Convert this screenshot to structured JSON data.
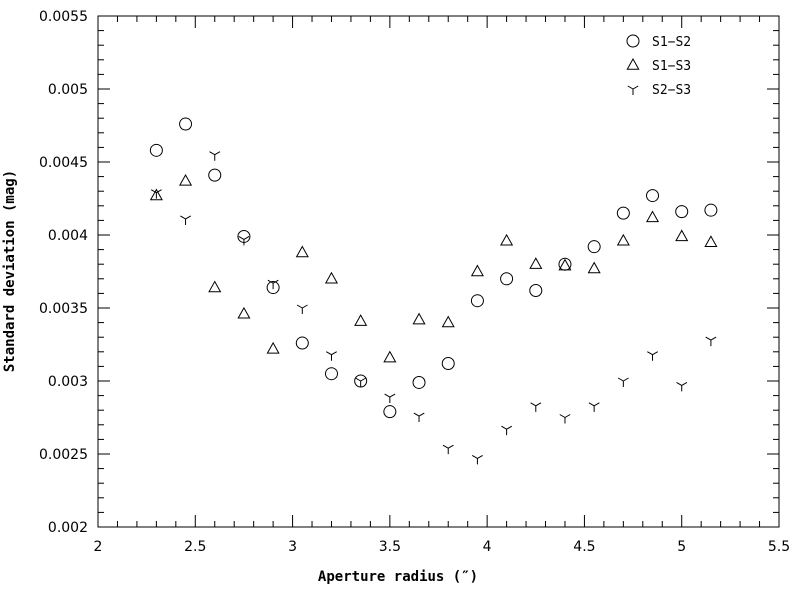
{
  "chart_data": {
    "type": "scatter",
    "title": "",
    "xlabel": "Aperture radius (″)",
    "ylabel": "Standard deviation (mag)",
    "xlim": [
      2,
      5.5
    ],
    "ylim": [
      0.002,
      0.0055
    ],
    "x_ticks": [
      "2",
      "2.5",
      "3",
      "3.5",
      "4",
      "4.5",
      "5",
      "5.5"
    ],
    "y_ticks": [
      "0.002",
      "0.0025",
      "0.003",
      "0.0035",
      "0.004",
      "0.0045",
      "0.005",
      "0.0055"
    ],
    "legend_position": "top-right",
    "grid": false,
    "series": [
      {
        "name": "S1−S2",
        "marker": "circle",
        "x": [
          2.3,
          2.45,
          2.6,
          2.75,
          2.9,
          3.05,
          3.2,
          3.35,
          3.5,
          3.65,
          3.8,
          3.95,
          4.1,
          4.25,
          4.4,
          4.55,
          4.7,
          4.85,
          5.0,
          5.15
        ],
        "y": [
          0.00458,
          0.00476,
          0.00441,
          0.00399,
          0.00364,
          0.00326,
          0.00305,
          0.003,
          0.00279,
          0.00299,
          0.00312,
          0.00355,
          0.0037,
          0.00362,
          0.0038,
          0.00392,
          0.00415,
          0.00427,
          0.00416,
          0.00417
        ]
      },
      {
        "name": "S1−S3",
        "marker": "triangle",
        "x": [
          2.3,
          2.45,
          2.6,
          2.75,
          2.9,
          3.05,
          3.2,
          3.35,
          3.5,
          3.65,
          3.8,
          3.95,
          4.1,
          4.25,
          4.4,
          4.55,
          4.7,
          4.85,
          5.0,
          5.15
        ],
        "y": [
          0.00427,
          0.00437,
          0.00364,
          0.00346,
          0.00322,
          0.00388,
          0.0037,
          0.00341,
          0.00316,
          0.00342,
          0.0034,
          0.00375,
          0.00396,
          0.0038,
          0.00379,
          0.00377,
          0.00396,
          0.00412,
          0.00399,
          0.00395
        ]
      },
      {
        "name": "S2−S3",
        "marker": "tripod",
        "x": [
          2.3,
          2.45,
          2.6,
          2.75,
          2.9,
          3.05,
          3.2,
          3.35,
          3.5,
          3.65,
          3.8,
          3.95,
          4.1,
          4.25,
          4.4,
          4.55,
          4.7,
          4.85,
          5.0,
          5.15
        ],
        "y": [
          0.00429,
          0.00411,
          0.00455,
          0.00397,
          0.00367,
          0.0035,
          0.00318,
          0.003,
          0.00289,
          0.00276,
          0.00254,
          0.00247,
          0.00267,
          0.00283,
          0.00275,
          0.00283,
          0.003,
          0.00318,
          0.00297,
          0.00328
        ]
      }
    ]
  }
}
